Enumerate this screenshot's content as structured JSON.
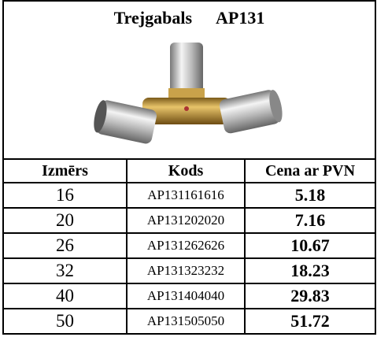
{
  "header": {
    "title": "Trejgabals",
    "code": "AP131"
  },
  "table": {
    "columns": [
      "Izmērs",
      "Kods",
      "Cena ar PVN"
    ],
    "rows": [
      [
        16,
        "AP131161616",
        5.18
      ],
      [
        20,
        "AP131202020",
        7.16
      ],
      [
        26,
        "AP131262626",
        10.67
      ],
      [
        32,
        "AP131323232",
        18.23
      ],
      [
        40,
        "AP131404040",
        29.83
      ],
      [
        50,
        "AP131505050",
        51.72
      ]
    ]
  }
}
